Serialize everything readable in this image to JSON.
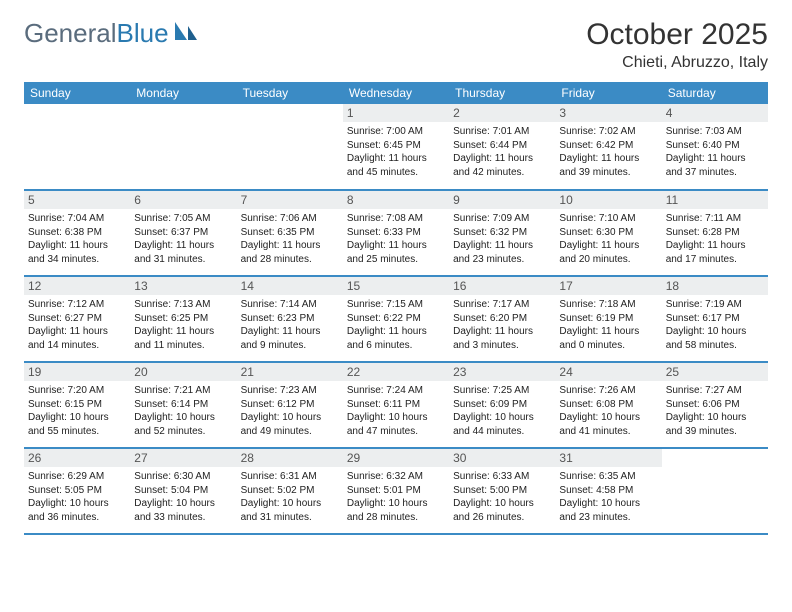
{
  "brand": {
    "part1": "General",
    "part2": "Blue"
  },
  "title": "October 2025",
  "location": "Chieti, Abruzzo, Italy",
  "colors": {
    "header_bar": "#3b8bc5",
    "daynum_bg": "#eceeef",
    "row_border": "#3b8bc5",
    "logo_gray": "#5a6c7d",
    "logo_blue": "#2a7ab0"
  },
  "daysOfWeek": [
    "Sunday",
    "Monday",
    "Tuesday",
    "Wednesday",
    "Thursday",
    "Friday",
    "Saturday"
  ],
  "weeks": [
    [
      {
        "n": "",
        "sr": "",
        "ss": "",
        "dl": ""
      },
      {
        "n": "",
        "sr": "",
        "ss": "",
        "dl": ""
      },
      {
        "n": "",
        "sr": "",
        "ss": "",
        "dl": ""
      },
      {
        "n": "1",
        "sr": "Sunrise: 7:00 AM",
        "ss": "Sunset: 6:45 PM",
        "dl": "Daylight: 11 hours and 45 minutes."
      },
      {
        "n": "2",
        "sr": "Sunrise: 7:01 AM",
        "ss": "Sunset: 6:44 PM",
        "dl": "Daylight: 11 hours and 42 minutes."
      },
      {
        "n": "3",
        "sr": "Sunrise: 7:02 AM",
        "ss": "Sunset: 6:42 PM",
        "dl": "Daylight: 11 hours and 39 minutes."
      },
      {
        "n": "4",
        "sr": "Sunrise: 7:03 AM",
        "ss": "Sunset: 6:40 PM",
        "dl": "Daylight: 11 hours and 37 minutes."
      }
    ],
    [
      {
        "n": "5",
        "sr": "Sunrise: 7:04 AM",
        "ss": "Sunset: 6:38 PM",
        "dl": "Daylight: 11 hours and 34 minutes."
      },
      {
        "n": "6",
        "sr": "Sunrise: 7:05 AM",
        "ss": "Sunset: 6:37 PM",
        "dl": "Daylight: 11 hours and 31 minutes."
      },
      {
        "n": "7",
        "sr": "Sunrise: 7:06 AM",
        "ss": "Sunset: 6:35 PM",
        "dl": "Daylight: 11 hours and 28 minutes."
      },
      {
        "n": "8",
        "sr": "Sunrise: 7:08 AM",
        "ss": "Sunset: 6:33 PM",
        "dl": "Daylight: 11 hours and 25 minutes."
      },
      {
        "n": "9",
        "sr": "Sunrise: 7:09 AM",
        "ss": "Sunset: 6:32 PM",
        "dl": "Daylight: 11 hours and 23 minutes."
      },
      {
        "n": "10",
        "sr": "Sunrise: 7:10 AM",
        "ss": "Sunset: 6:30 PM",
        "dl": "Daylight: 11 hours and 20 minutes."
      },
      {
        "n": "11",
        "sr": "Sunrise: 7:11 AM",
        "ss": "Sunset: 6:28 PM",
        "dl": "Daylight: 11 hours and 17 minutes."
      }
    ],
    [
      {
        "n": "12",
        "sr": "Sunrise: 7:12 AM",
        "ss": "Sunset: 6:27 PM",
        "dl": "Daylight: 11 hours and 14 minutes."
      },
      {
        "n": "13",
        "sr": "Sunrise: 7:13 AM",
        "ss": "Sunset: 6:25 PM",
        "dl": "Daylight: 11 hours and 11 minutes."
      },
      {
        "n": "14",
        "sr": "Sunrise: 7:14 AM",
        "ss": "Sunset: 6:23 PM",
        "dl": "Daylight: 11 hours and 9 minutes."
      },
      {
        "n": "15",
        "sr": "Sunrise: 7:15 AM",
        "ss": "Sunset: 6:22 PM",
        "dl": "Daylight: 11 hours and 6 minutes."
      },
      {
        "n": "16",
        "sr": "Sunrise: 7:17 AM",
        "ss": "Sunset: 6:20 PM",
        "dl": "Daylight: 11 hours and 3 minutes."
      },
      {
        "n": "17",
        "sr": "Sunrise: 7:18 AM",
        "ss": "Sunset: 6:19 PM",
        "dl": "Daylight: 11 hours and 0 minutes."
      },
      {
        "n": "18",
        "sr": "Sunrise: 7:19 AM",
        "ss": "Sunset: 6:17 PM",
        "dl": "Daylight: 10 hours and 58 minutes."
      }
    ],
    [
      {
        "n": "19",
        "sr": "Sunrise: 7:20 AM",
        "ss": "Sunset: 6:15 PM",
        "dl": "Daylight: 10 hours and 55 minutes."
      },
      {
        "n": "20",
        "sr": "Sunrise: 7:21 AM",
        "ss": "Sunset: 6:14 PM",
        "dl": "Daylight: 10 hours and 52 minutes."
      },
      {
        "n": "21",
        "sr": "Sunrise: 7:23 AM",
        "ss": "Sunset: 6:12 PM",
        "dl": "Daylight: 10 hours and 49 minutes."
      },
      {
        "n": "22",
        "sr": "Sunrise: 7:24 AM",
        "ss": "Sunset: 6:11 PM",
        "dl": "Daylight: 10 hours and 47 minutes."
      },
      {
        "n": "23",
        "sr": "Sunrise: 7:25 AM",
        "ss": "Sunset: 6:09 PM",
        "dl": "Daylight: 10 hours and 44 minutes."
      },
      {
        "n": "24",
        "sr": "Sunrise: 7:26 AM",
        "ss": "Sunset: 6:08 PM",
        "dl": "Daylight: 10 hours and 41 minutes."
      },
      {
        "n": "25",
        "sr": "Sunrise: 7:27 AM",
        "ss": "Sunset: 6:06 PM",
        "dl": "Daylight: 10 hours and 39 minutes."
      }
    ],
    [
      {
        "n": "26",
        "sr": "Sunrise: 6:29 AM",
        "ss": "Sunset: 5:05 PM",
        "dl": "Daylight: 10 hours and 36 minutes."
      },
      {
        "n": "27",
        "sr": "Sunrise: 6:30 AM",
        "ss": "Sunset: 5:04 PM",
        "dl": "Daylight: 10 hours and 33 minutes."
      },
      {
        "n": "28",
        "sr": "Sunrise: 6:31 AM",
        "ss": "Sunset: 5:02 PM",
        "dl": "Daylight: 10 hours and 31 minutes."
      },
      {
        "n": "29",
        "sr": "Sunrise: 6:32 AM",
        "ss": "Sunset: 5:01 PM",
        "dl": "Daylight: 10 hours and 28 minutes."
      },
      {
        "n": "30",
        "sr": "Sunrise: 6:33 AM",
        "ss": "Sunset: 5:00 PM",
        "dl": "Daylight: 10 hours and 26 minutes."
      },
      {
        "n": "31",
        "sr": "Sunrise: 6:35 AM",
        "ss": "Sunset: 4:58 PM",
        "dl": "Daylight: 10 hours and 23 minutes."
      },
      {
        "n": "",
        "sr": "",
        "ss": "",
        "dl": ""
      }
    ]
  ]
}
